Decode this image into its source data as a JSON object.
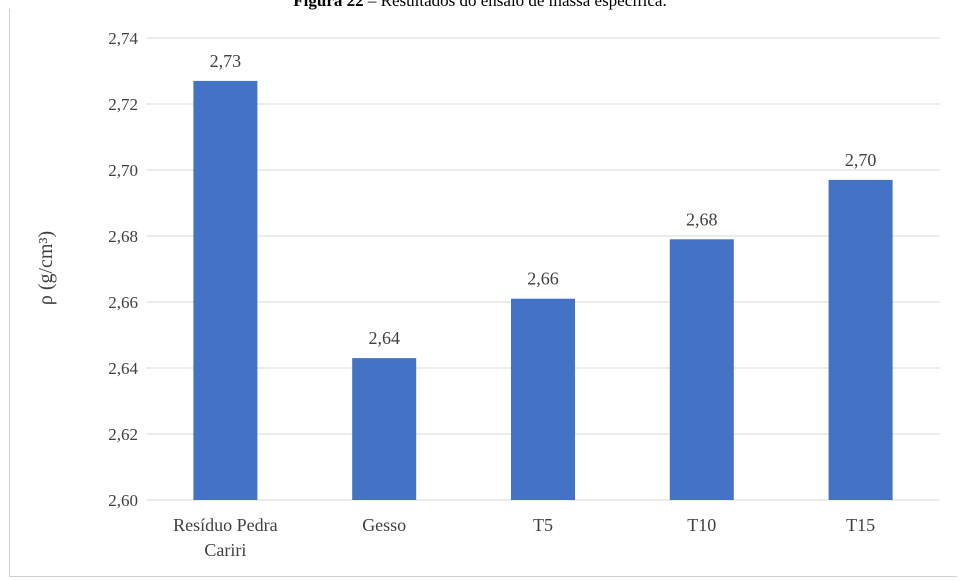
{
  "figure": {
    "caption_prefix": "Figura 22",
    "caption_text": " – Resultados do ensaio de massa específica."
  },
  "chart_data": {
    "type": "bar",
    "title": "",
    "xlabel": "",
    "ylabel": "ρ (g/cm³)",
    "categories": [
      "Resíduo Pedra Cariri",
      "Gesso",
      "T5",
      "T10",
      "T15"
    ],
    "category_lines": [
      [
        "Resíduo Pedra",
        "Cariri"
      ],
      [
        "Gesso"
      ],
      [
        "T5"
      ],
      [
        "T10"
      ],
      [
        "T15"
      ]
    ],
    "values": [
      2.727,
      2.643,
      2.661,
      2.679,
      2.697
    ],
    "data_labels": [
      "2,73",
      "2,64",
      "2,66",
      "2,68",
      "2,70"
    ],
    "ylim": [
      2.6,
      2.74
    ],
    "yticks": [
      2.6,
      2.62,
      2.64,
      2.66,
      2.68,
      2.7,
      2.72,
      2.74
    ],
    "ytick_labels": [
      "2,60",
      "2,62",
      "2,64",
      "2,66",
      "2,68",
      "2,70",
      "2,72",
      "2,74"
    ],
    "grid": true,
    "legend": "none",
    "bar_color": "#4472c4",
    "grid_color": "#d9d9d9"
  }
}
